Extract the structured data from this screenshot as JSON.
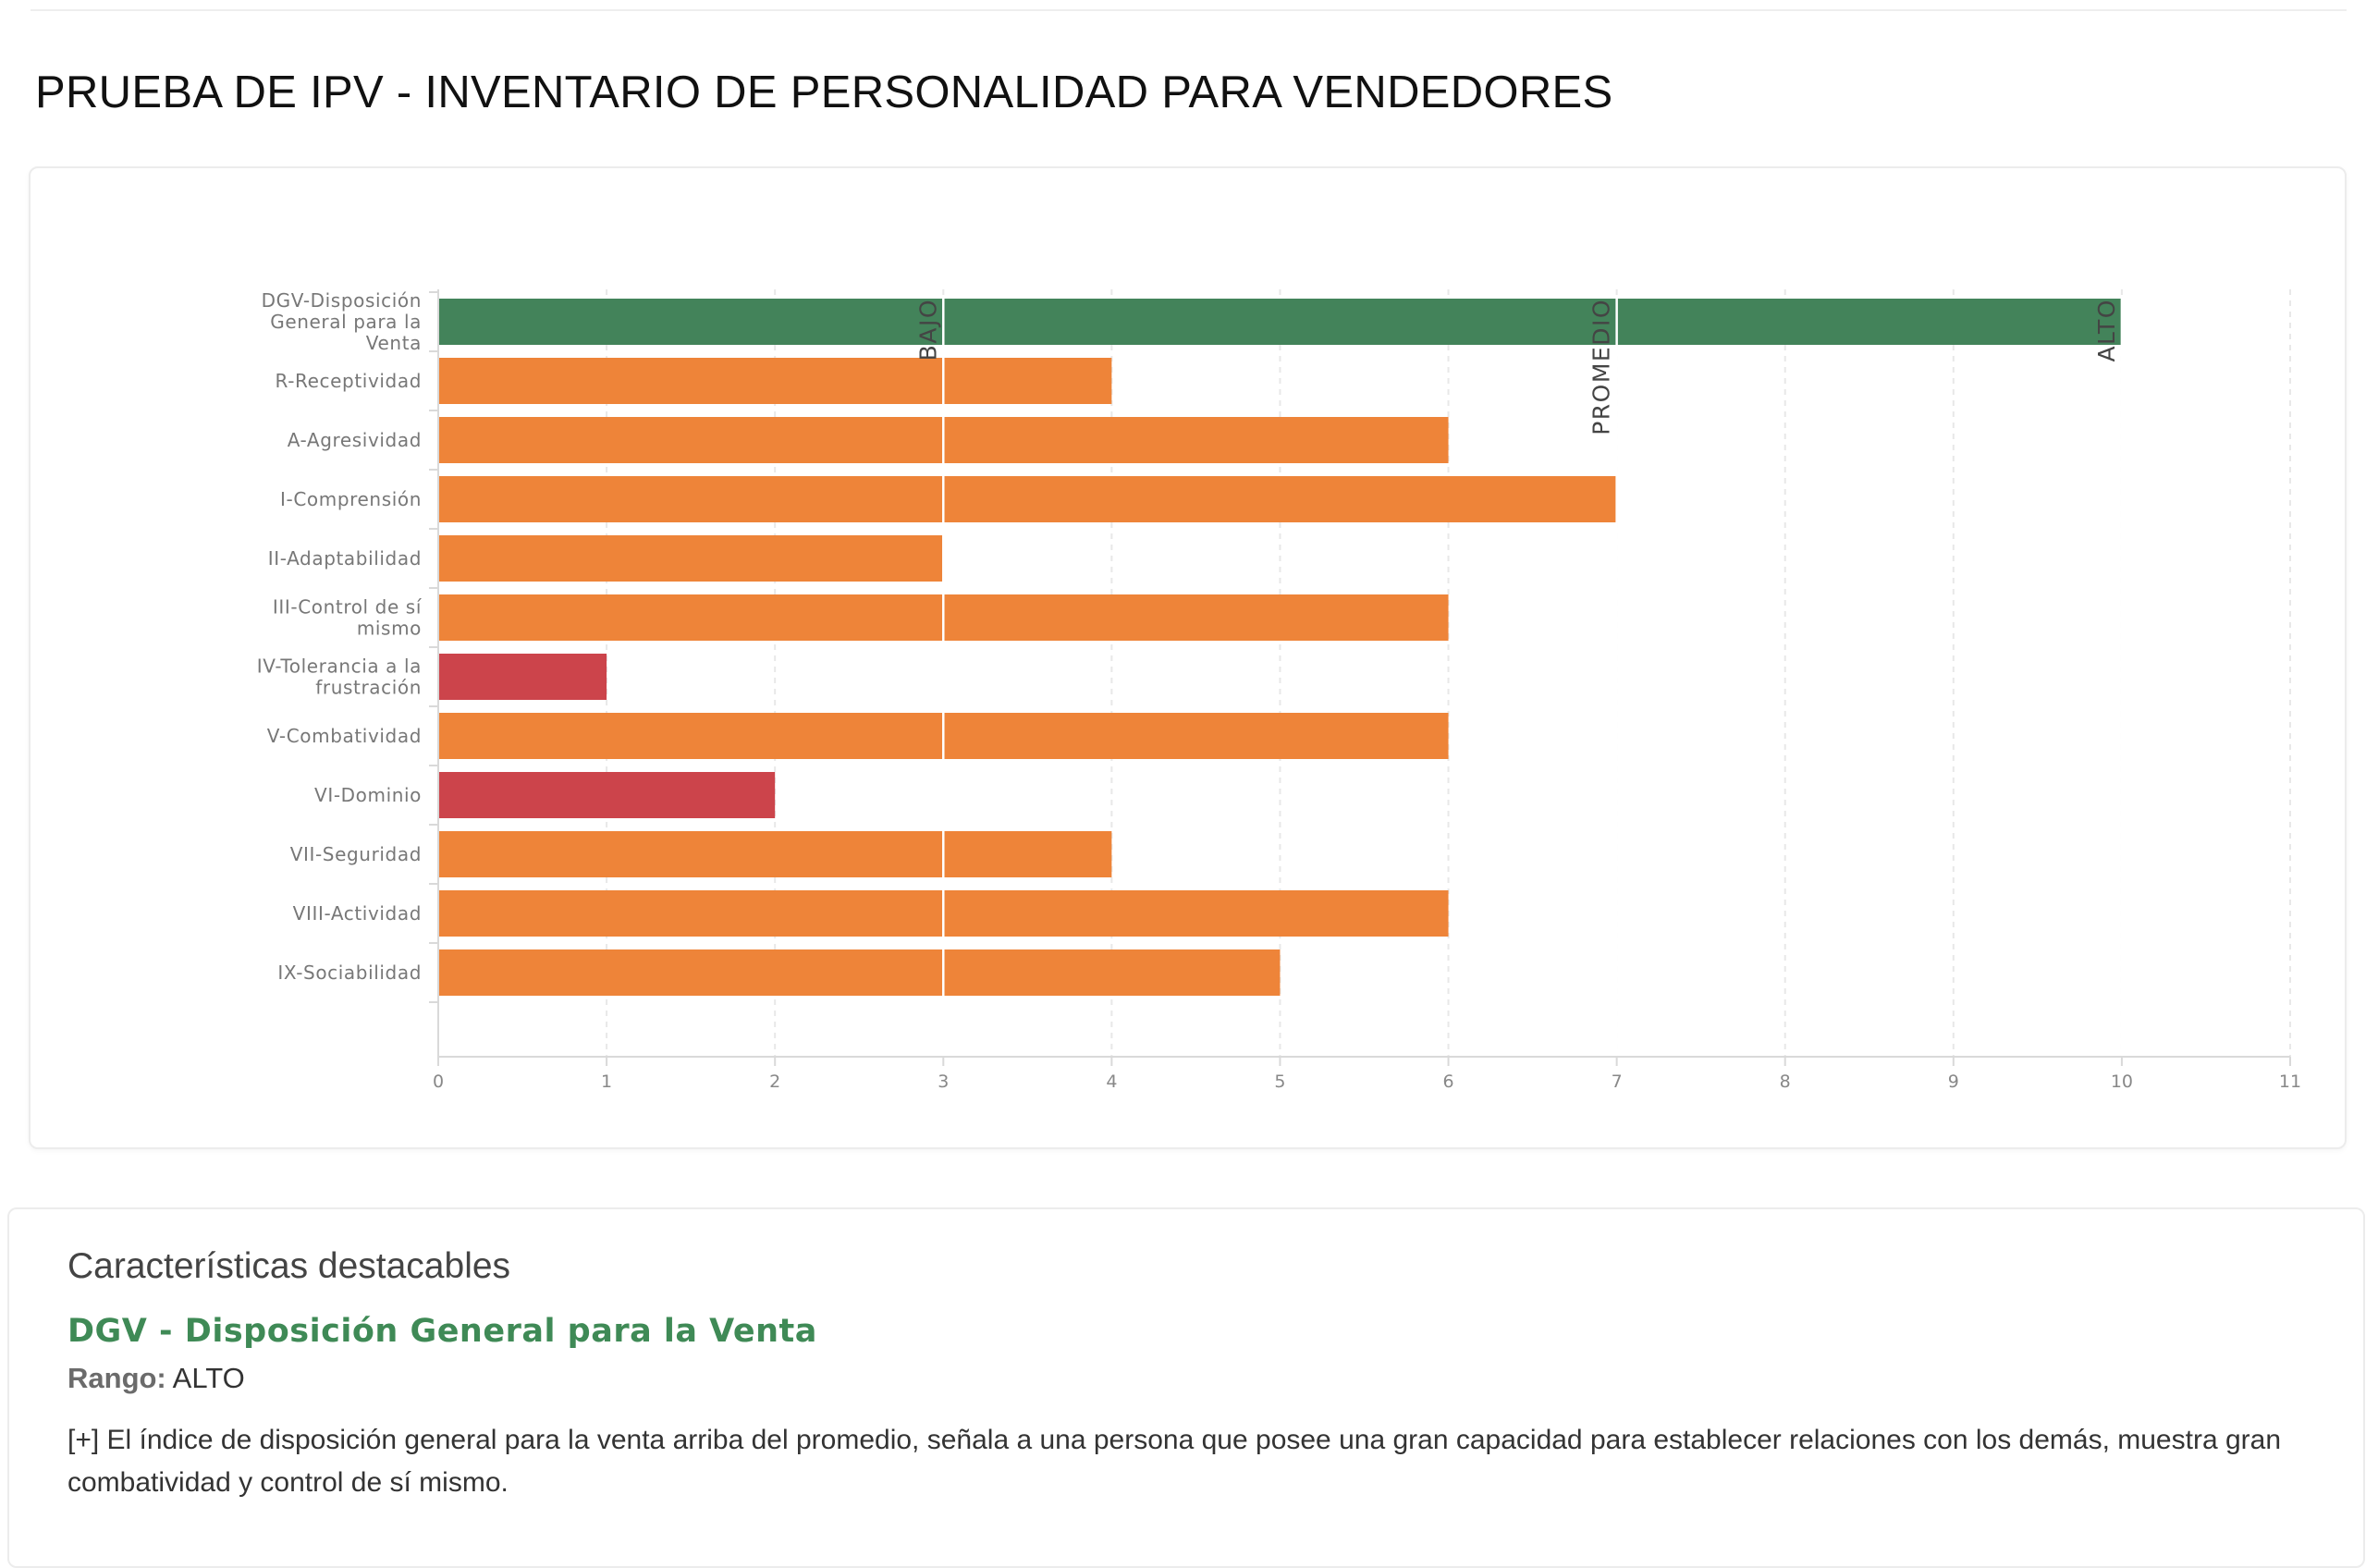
{
  "page": {
    "title": "PRUEBA DE IPV - INVENTARIO DE PERSONALIDAD PARA VENDEDORES"
  },
  "chart_data": {
    "type": "bar",
    "orientation": "horizontal",
    "categories": [
      [
        "DGV-Disposición",
        "General para la",
        "Venta"
      ],
      [
        "R-Receptividad"
      ],
      [
        "A-Agresividad"
      ],
      [
        "I-Comprensión"
      ],
      [
        "II-Adaptabilidad"
      ],
      [
        "III-Control de sí",
        "mismo"
      ],
      [
        "IV-Tolerancia a la",
        "frustración"
      ],
      [
        "V-Combatividad"
      ],
      [
        "VI-Dominio"
      ],
      [
        "VII-Seguridad"
      ],
      [
        "VIII-Actividad"
      ],
      [
        "IX-Sociabilidad"
      ]
    ],
    "values": [
      10,
      4,
      6,
      7,
      3,
      6,
      1,
      6,
      2,
      4,
      6,
      5
    ],
    "bar_colors": [
      "#43835a",
      "#ee8439",
      "#ee8439",
      "#ee8439",
      "#ee8439",
      "#ee8439",
      "#cc444b",
      "#ee8439",
      "#cc444b",
      "#ee8439",
      "#ee8439",
      "#ee8439"
    ],
    "xlim": [
      0,
      11
    ],
    "x_ticks": [
      "0",
      "1",
      "2",
      "3",
      "4",
      "5",
      "6",
      "7",
      "8",
      "9",
      "10",
      "11"
    ],
    "grid": true,
    "reference_lines": [
      {
        "label": "BAJO",
        "x": 3
      },
      {
        "label": "PROMEDIO",
        "x": 7
      },
      {
        "label": "ALTO",
        "x": 10
      }
    ],
    "colors": {
      "alto": "#43835a",
      "promedio": "#ee8439",
      "bajo": "#cc444b"
    }
  },
  "highlights": {
    "heading": "Características destacables",
    "item_title": "DGV - Disposición General para la Venta",
    "range_label": "Rango:",
    "range_value": "ALTO",
    "description": "[+] El índice de disposición general para la venta arriba del promedio, señala a una persona que posee una gran capacidad para establecer relaciones con los demás, muestra gran combatividad y control de sí mismo."
  }
}
